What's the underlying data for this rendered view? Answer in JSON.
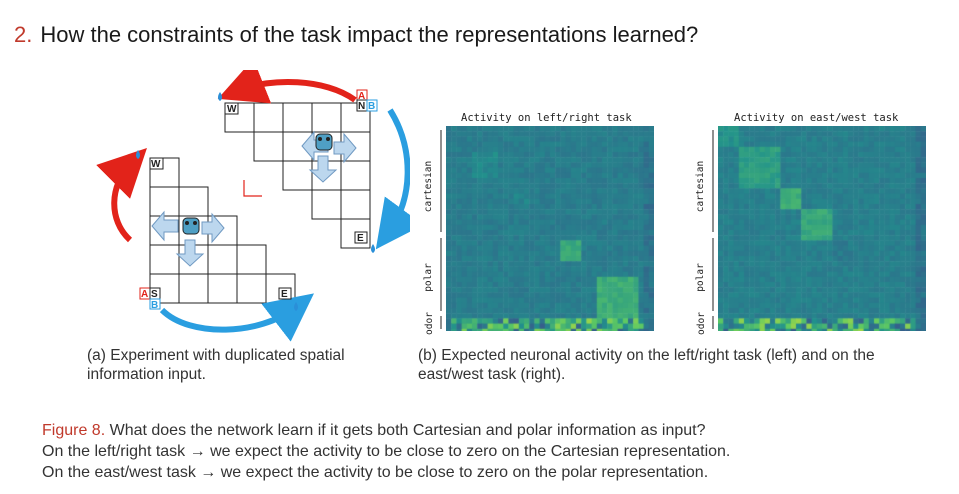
{
  "section": {
    "number": "2.",
    "title": "How the constraints of the task impact the representations learned?"
  },
  "maze": {
    "labels": {
      "w": "W",
      "e": "E",
      "a": "A",
      "n": "N",
      "s": "S",
      "b": "B"
    }
  },
  "caption_a": "(a) Experiment with duplicated spatial information input.",
  "caption_b": "(b) Expected neuronal activity on the left/right task (left) and on the east/west task (right).",
  "heatmaps": {
    "left": {
      "title": "Activity on left/right task",
      "labels": {
        "cartesian": "cartesian",
        "polar": "polar",
        "odor": "odor"
      }
    },
    "right": {
      "title": "Activity on east/west task",
      "labels": {
        "cartesian": "cartesian",
        "polar": "polar",
        "odor": "odor"
      }
    }
  },
  "figure_caption": {
    "label": "Figure 8.",
    "line1": "What does the network learn if it gets both Cartesian and polar information as input?",
    "line2": "On the left/right task → we expect the activity to be close to zero on the Cartesian representation.",
    "line3": "On the east/west task → we expect the activity to be close to zero on the polar representation."
  },
  "colors": {
    "accent_red": "#c0392b",
    "arrow_red": "#e2231a",
    "arrow_blue": "#2a9ee0",
    "drop_blue": "#2a8fd8"
  }
}
